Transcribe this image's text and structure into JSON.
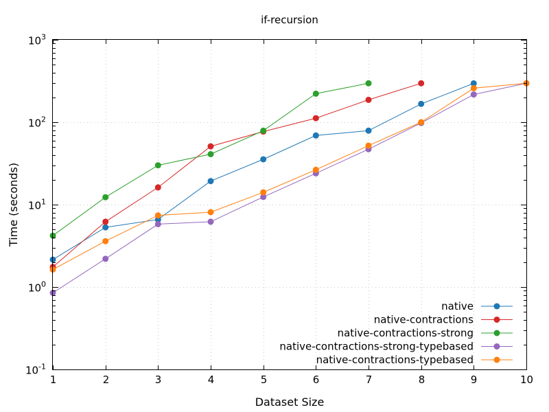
{
  "chart_data": {
    "type": "line",
    "title": "if-recursion",
    "xlabel": "Dataset Size",
    "ylabel": "Time (seconds)",
    "x_ticks": [
      "1",
      "2",
      "3",
      "4",
      "5",
      "6",
      "7",
      "8",
      "9",
      "10"
    ],
    "xlim": [
      1,
      10
    ],
    "ylim": [
      0.1,
      1000
    ],
    "y_scale": "log",
    "y_ticks": [
      {
        "value": 0.1,
        "base": "10",
        "exp": "-1"
      },
      {
        "value": 1,
        "base": "10",
        "exp": "0"
      },
      {
        "value": 10,
        "base": "10",
        "exp": "1"
      },
      {
        "value": 100,
        "base": "10",
        "exp": "2"
      },
      {
        "value": 1000,
        "base": "10",
        "exp": "3"
      }
    ],
    "grid": true,
    "legend_position": "bottom-right",
    "series": [
      {
        "name": "native",
        "color": "#1f77b4",
        "x": [
          1,
          2,
          3,
          4,
          5,
          6,
          7,
          8,
          9
        ],
        "y": [
          2.15,
          5.3,
          6.6,
          19.3,
          35.5,
          69,
          79,
          167,
          296
        ]
      },
      {
        "name": "native-contractions",
        "color": "#d62728",
        "x": [
          1,
          2,
          3,
          4,
          5,
          6,
          7,
          8
        ],
        "y": [
          1.75,
          6.2,
          16.2,
          51,
          77,
          112,
          187,
          297
        ]
      },
      {
        "name": "native-contractions-strong",
        "color": "#2ca02c",
        "x": [
          1,
          2,
          3,
          4,
          5,
          6,
          7
        ],
        "y": [
          4.2,
          12.3,
          30,
          41,
          79,
          222,
          297
        ]
      },
      {
        "name": "native-contractions-strong-typebased",
        "color": "#9467bd",
        "x": [
          1,
          2,
          3,
          4,
          5,
          6,
          7,
          8,
          9,
          10
        ],
        "y": [
          0.85,
          2.2,
          5.8,
          6.2,
          12.4,
          24,
          47,
          98,
          217,
          297
        ]
      },
      {
        "name": "native-contractions-typebased",
        "color": "#ff7f0e",
        "x": [
          1,
          2,
          3,
          4,
          5,
          6,
          7,
          8,
          9,
          10
        ],
        "y": [
          1.63,
          3.6,
          7.4,
          8.1,
          14.1,
          26.5,
          52,
          100,
          259,
          297
        ]
      }
    ]
  }
}
